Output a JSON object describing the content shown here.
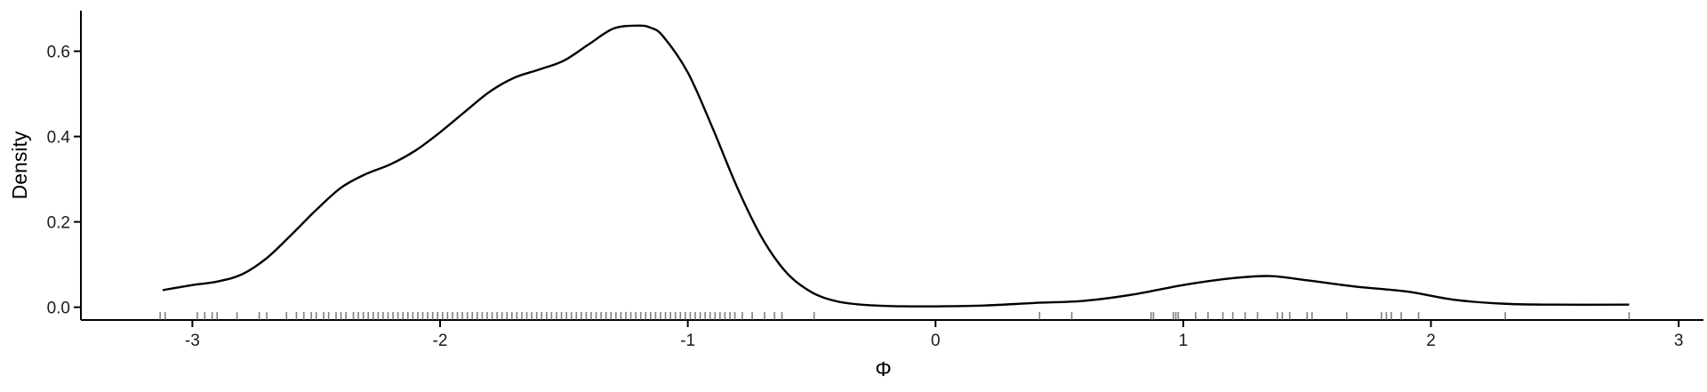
{
  "chart_data": {
    "type": "line",
    "title": "",
    "xlabel": "Φ",
    "ylabel": "Density",
    "xlim": [
      -3.45,
      3.1
    ],
    "ylim": [
      -0.03,
      0.695
    ],
    "x_ticks": [
      -3,
      -2,
      -1,
      0,
      1,
      2,
      3
    ],
    "x_tick_labels": [
      "-3",
      "-2",
      "-1",
      "0",
      "1",
      "2",
      "3"
    ],
    "y_ticks": [
      0.0,
      0.2,
      0.4,
      0.6
    ],
    "y_tick_labels": [
      "0.0",
      "0.2",
      "0.4",
      "0.6"
    ],
    "grid": false,
    "legend": "none",
    "line_color": "#000000",
    "rug_color": "#555555",
    "series": [
      {
        "x": [
          -3.12,
          -3.0,
          -2.9,
          -2.8,
          -2.7,
          -2.6,
          -2.5,
          -2.4,
          -2.3,
          -2.2,
          -2.1,
          -2.0,
          -1.9,
          -1.8,
          -1.7,
          -1.6,
          -1.5,
          -1.4,
          -1.3,
          -1.2,
          -1.15,
          -1.1,
          -1.0,
          -0.9,
          -0.8,
          -0.7,
          -0.6,
          -0.5,
          -0.4,
          -0.3,
          -0.2,
          -0.1,
          0.0,
          0.2,
          0.4,
          0.6,
          0.8,
          1.0,
          1.2,
          1.35,
          1.5,
          1.7,
          1.9,
          2.1,
          2.3,
          2.5,
          2.8
        ],
        "y": [
          0.04,
          0.052,
          0.06,
          0.077,
          0.115,
          0.17,
          0.228,
          0.28,
          0.312,
          0.335,
          0.367,
          0.41,
          0.458,
          0.505,
          0.538,
          0.557,
          0.578,
          0.616,
          0.653,
          0.66,
          0.655,
          0.635,
          0.55,
          0.42,
          0.28,
          0.162,
          0.08,
          0.035,
          0.014,
          0.006,
          0.003,
          0.002,
          0.002,
          0.004,
          0.01,
          0.015,
          0.03,
          0.052,
          0.068,
          0.073,
          0.063,
          0.048,
          0.037,
          0.017,
          0.008,
          0.006,
          0.006
        ]
      }
    ],
    "rug": [
      -3.13,
      -3.11,
      -2.98,
      -2.95,
      -2.92,
      -2.9,
      -2.82,
      -2.73,
      -2.7,
      -2.62,
      -2.58,
      -2.55,
      -2.52,
      -2.5,
      -2.47,
      -2.45,
      -2.42,
      -2.4,
      -2.38,
      -2.35,
      -2.33,
      -2.31,
      -2.29,
      -2.27,
      -2.25,
      -2.23,
      -2.21,
      -2.19,
      -2.17,
      -2.15,
      -2.13,
      -2.11,
      -2.09,
      -2.07,
      -2.05,
      -2.03,
      -2.01,
      -1.99,
      -1.97,
      -1.95,
      -1.93,
      -1.91,
      -1.89,
      -1.87,
      -1.85,
      -1.83,
      -1.81,
      -1.79,
      -1.77,
      -1.75,
      -1.73,
      -1.71,
      -1.69,
      -1.67,
      -1.65,
      -1.63,
      -1.61,
      -1.59,
      -1.57,
      -1.55,
      -1.53,
      -1.51,
      -1.49,
      -1.47,
      -1.45,
      -1.43,
      -1.41,
      -1.39,
      -1.37,
      -1.35,
      -1.33,
      -1.31,
      -1.29,
      -1.27,
      -1.25,
      -1.23,
      -1.21,
      -1.19,
      -1.17,
      -1.15,
      -1.13,
      -1.11,
      -1.09,
      -1.07,
      -1.05,
      -1.03,
      -1.01,
      -0.99,
      -0.97,
      -0.95,
      -0.93,
      -0.91,
      -0.89,
      -0.87,
      -0.85,
      -0.83,
      -0.81,
      -0.78,
      -0.74,
      -0.69,
      -0.65,
      -0.62,
      -0.49,
      0.42,
      0.55,
      0.87,
      0.88,
      0.96,
      0.97,
      0.98,
      1.05,
      1.1,
      1.16,
      1.2,
      1.25,
      1.3,
      1.38,
      1.4,
      1.43,
      1.5,
      1.52,
      1.66,
      1.8,
      1.82,
      1.84,
      1.88,
      1.95,
      2.3,
      2.8
    ]
  }
}
